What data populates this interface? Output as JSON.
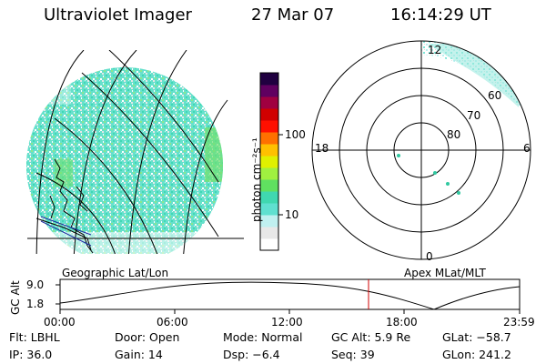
{
  "header": {
    "instrument": "Ultraviolet Imager",
    "date": "27 Mar 07",
    "time": "16:14:29 UT"
  },
  "colorbar": {
    "unit_label": "photon cm⁻²s⁻¹",
    "ticks": [
      "100",
      "10"
    ],
    "colors": [
      "#ffffff",
      "#e8e8e8",
      "#c0f0f0",
      "#60e0d0",
      "#40d8b0",
      "#60e060",
      "#a0f040",
      "#e0f000",
      "#ffc000",
      "#ff7000",
      "#ff1000",
      "#d00000",
      "#a00040",
      "#600060",
      "#200040"
    ]
  },
  "polar_plot": {
    "mlt_labels": {
      "top": "12",
      "right": "6",
      "bottom": "0",
      "left": "18"
    },
    "lat_labels": [
      "60",
      "70",
      "80"
    ]
  },
  "geo_label": "Geographic Lat/Lon",
  "apex_label": "Apex MLat/MLT",
  "orbit_plot": {
    "y_axis_label": "GC Alt",
    "y_ticks": [
      "9.0",
      "1.8"
    ],
    "x_ticks": [
      "00:00",
      "06:00",
      "12:00",
      "18:00",
      "23:59"
    ]
  },
  "status": {
    "filter": "Flt: LBHL",
    "door": "Door: Open",
    "mode": "Mode: Normal",
    "gc_alt": "GC Alt: 5.9 Re",
    "glat": "GLat: −58.7",
    "ip": "IP: 36.0",
    "gain": "Gain: 14",
    "dsp": "Dsp:   −6.4",
    "seq": "Seq: 39",
    "glon": "GLon: 241.2"
  }
}
